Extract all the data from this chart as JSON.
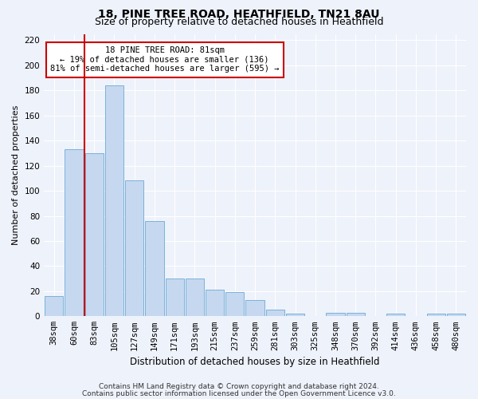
{
  "title1": "18, PINE TREE ROAD, HEATHFIELD, TN21 8AU",
  "title2": "Size of property relative to detached houses in Heathfield",
  "xlabel": "Distribution of detached houses by size in Heathfield",
  "ylabel": "Number of detached properties",
  "categories": [
    "38sqm",
    "60sqm",
    "83sqm",
    "105sqm",
    "127sqm",
    "149sqm",
    "171sqm",
    "193sqm",
    "215sqm",
    "237sqm",
    "259sqm",
    "281sqm",
    "303sqm",
    "325sqm",
    "348sqm",
    "370sqm",
    "392sqm",
    "414sqm",
    "436sqm",
    "458sqm",
    "480sqm"
  ],
  "values": [
    16,
    133,
    130,
    184,
    108,
    76,
    30,
    30,
    21,
    19,
    13,
    5,
    2,
    0,
    3,
    3,
    0,
    2,
    0,
    2,
    2
  ],
  "bar_color": "#c5d8f0",
  "bar_edge_color": "#6aaad4",
  "redline_x": 1.5,
  "annotation_text": "18 PINE TREE ROAD: 81sqm\n← 19% of detached houses are smaller (136)\n81% of semi-detached houses are larger (595) →",
  "annotation_box_color": "#ffffff",
  "annotation_box_edge": "#cc0000",
  "redline_color": "#cc0000",
  "ylim": [
    0,
    225
  ],
  "yticks": [
    0,
    20,
    40,
    60,
    80,
    100,
    120,
    140,
    160,
    180,
    200,
    220
  ],
  "footer1": "Contains HM Land Registry data © Crown copyright and database right 2024.",
  "footer2": "Contains public sector information licensed under the Open Government Licence v3.0.",
  "background_color": "#eef2fb",
  "grid_color": "#ffffff",
  "title1_fontsize": 10,
  "title2_fontsize": 9,
  "xlabel_fontsize": 8.5,
  "ylabel_fontsize": 8,
  "tick_fontsize": 7.5,
  "annotation_fontsize": 7.5,
  "footer_fontsize": 6.5
}
